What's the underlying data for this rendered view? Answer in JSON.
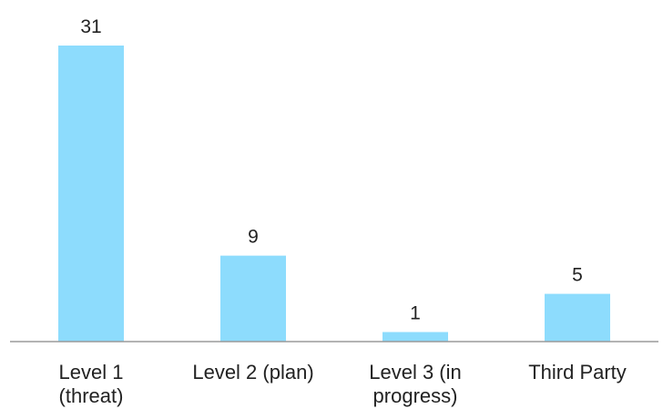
{
  "chart_data": {
    "type": "bar",
    "categories": [
      "Level 1 (threat)",
      "Level 2 (plan)",
      "Level 3 (in progress)",
      "Third Party"
    ],
    "values": [
      31,
      9,
      1,
      5
    ],
    "color": "#8ddcfd"
  }
}
